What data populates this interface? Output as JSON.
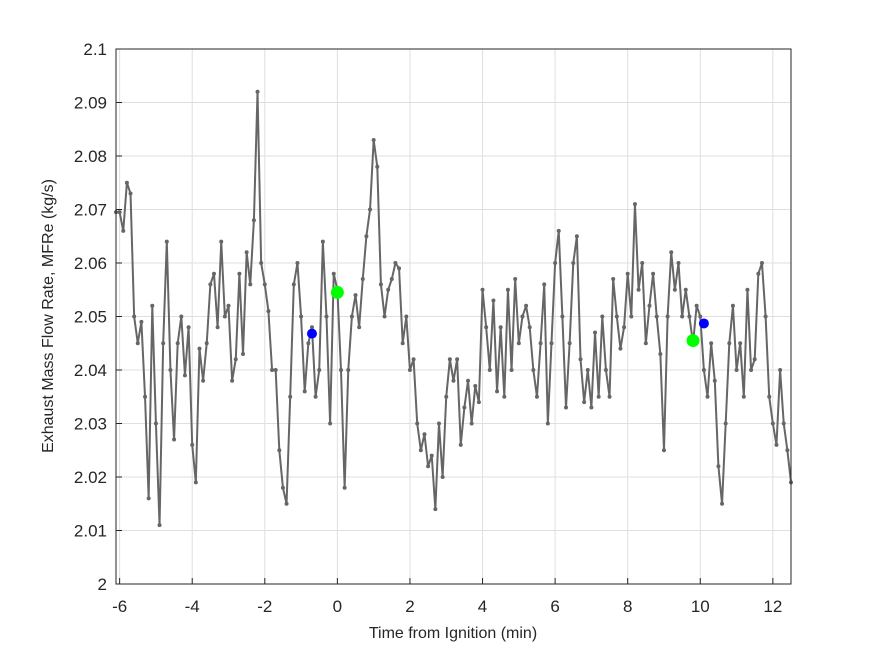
{
  "chart_data": {
    "type": "line",
    "xlabel": "Time from Ignition (min)",
    "ylabel": "Exhaust Mass Flow Rate, MFRe (kg/s)",
    "xlim": [
      -6.1,
      12.5
    ],
    "xticks": [
      -6,
      -4,
      -2,
      0,
      2,
      4,
      6,
      8,
      10,
      12
    ],
    "ylim": [
      2,
      2.1
    ],
    "yticks": [
      2,
      2.01,
      2.02,
      2.03,
      2.04,
      2.05,
      2.06,
      2.07,
      2.08,
      2.09,
      2.1
    ],
    "grid": true,
    "series": [
      {
        "color": "#666666",
        "marker": "dot",
        "x": [
          -6.1,
          -6.0,
          -5.9,
          -5.8,
          -5.7,
          -5.6,
          -5.5,
          -5.4,
          -5.3,
          -5.2,
          -5.1,
          -5.0,
          -4.9,
          -4.8,
          -4.7,
          -4.6,
          -4.5,
          -4.4,
          -4.3,
          -4.2,
          -4.1,
          -4.0,
          -3.9,
          -3.8,
          -3.7,
          -3.6,
          -3.5,
          -3.4,
          -3.3,
          -3.2,
          -3.1,
          -3.0,
          -2.9,
          -2.8,
          -2.7,
          -2.6,
          -2.5,
          -2.4,
          -2.3,
          -2.2,
          -2.1,
          -2.0,
          -1.9,
          -1.8,
          -1.7,
          -1.6,
          -1.5,
          -1.4,
          -1.3,
          -1.2,
          -1.1,
          -1.0,
          -0.9,
          -0.8,
          -0.7,
          -0.6,
          -0.5,
          -0.4,
          -0.3,
          -0.2,
          -0.1,
          0.0,
          0.1,
          0.2,
          0.3,
          0.4,
          0.5,
          0.6,
          0.7,
          0.8,
          0.9,
          1.0,
          1.1,
          1.2,
          1.3,
          1.4,
          1.5,
          1.6,
          1.7,
          1.8,
          1.9,
          2.0,
          2.1,
          2.2,
          2.3,
          2.4,
          2.5,
          2.6,
          2.7,
          2.8,
          2.9,
          3.0,
          3.1,
          3.2,
          3.3,
          3.4,
          3.5,
          3.6,
          3.7,
          3.8,
          3.9,
          4.0,
          4.1,
          4.2,
          4.3,
          4.4,
          4.5,
          4.6,
          4.7,
          4.8,
          4.9,
          5.0,
          5.1,
          5.2,
          5.3,
          5.4,
          5.5,
          5.6,
          5.7,
          5.8,
          5.9,
          6.0,
          6.1,
          6.2,
          6.3,
          6.4,
          6.5,
          6.6,
          6.7,
          6.8,
          6.9,
          7.0,
          7.1,
          7.2,
          7.3,
          7.4,
          7.5,
          7.6,
          7.7,
          7.8,
          7.9,
          8.0,
          8.1,
          8.2,
          8.3,
          8.4,
          8.5,
          8.6,
          8.7,
          8.8,
          8.9,
          9.0,
          9.1,
          9.2,
          9.3,
          9.4,
          9.5,
          9.6,
          9.7,
          9.8,
          9.9,
          10.0,
          10.1,
          10.2,
          10.3,
          10.4,
          10.5,
          10.6,
          10.7,
          10.8,
          10.9,
          11.0,
          11.1,
          11.2,
          11.3,
          11.4,
          11.5,
          11.6,
          11.7,
          11.8,
          11.9,
          12.0,
          12.1,
          12.2,
          12.3,
          12.4,
          12.5
        ],
        "values": [
          2.0695,
          2.0695,
          2.066,
          2.075,
          2.073,
          2.05,
          2.045,
          2.049,
          2.035,
          2.016,
          2.052,
          2.03,
          2.011,
          2.045,
          2.064,
          2.04,
          2.027,
          2.045,
          2.05,
          2.039,
          2.048,
          2.026,
          2.019,
          2.044,
          2.038,
          2.045,
          2.056,
          2.058,
          2.048,
          2.064,
          2.05,
          2.052,
          2.038,
          2.042,
          2.058,
          2.043,
          2.062,
          2.056,
          2.068,
          2.092,
          2.06,
          2.056,
          2.051,
          2.04,
          2.04,
          2.025,
          2.018,
          2.015,
          2.035,
          2.056,
          2.06,
          2.05,
          2.036,
          2.045,
          2.048,
          2.035,
          2.04,
          2.064,
          2.05,
          2.03,
          2.058,
          2.055,
          2.04,
          2.018,
          2.04,
          2.05,
          2.054,
          2.048,
          2.057,
          2.065,
          2.07,
          2.083,
          2.078,
          2.056,
          2.05,
          2.055,
          2.057,
          2.06,
          2.059,
          2.045,
          2.05,
          2.04,
          2.042,
          2.03,
          2.025,
          2.028,
          2.022,
          2.024,
          2.014,
          2.03,
          2.02,
          2.035,
          2.042,
          2.038,
          2.042,
          2.026,
          2.033,
          2.038,
          2.03,
          2.037,
          2.034,
          2.055,
          2.048,
          2.04,
          2.053,
          2.036,
          2.048,
          2.035,
          2.055,
          2.04,
          2.057,
          2.045,
          2.05,
          2.052,
          2.048,
          2.04,
          2.035,
          2.045,
          2.056,
          2.03,
          2.045,
          2.06,
          2.066,
          2.05,
          2.033,
          2.045,
          2.06,
          2.065,
          2.042,
          2.034,
          2.04,
          2.033,
          2.047,
          2.035,
          2.05,
          2.04,
          2.035,
          2.057,
          2.05,
          2.044,
          2.048,
          2.058,
          2.05,
          2.071,
          2.055,
          2.06,
          2.045,
          2.052,
          2.058,
          2.05,
          2.043,
          2.025,
          2.05,
          2.062,
          2.055,
          2.06,
          2.05,
          2.055,
          2.05,
          2.045,
          2.052,
          2.05,
          2.04,
          2.035,
          2.045,
          2.038,
          2.022,
          2.015,
          2.03,
          2.045,
          2.052,
          2.04,
          2.045,
          2.035,
          2.055,
          2.04,
          2.042,
          2.058,
          2.06,
          2.05,
          2.035,
          2.03,
          2.026,
          2.04,
          2.03,
          2.025,
          2.019
        ]
      },
      {
        "color": "#0000ff",
        "marker": "point",
        "x": [
          -0.7,
          10.1
        ],
        "values": [
          2.0468,
          2.0487
        ]
      },
      {
        "color": "#00ff00",
        "marker": "big",
        "x": [
          0,
          9.8
        ],
        "values": [
          2.0545,
          2.0455
        ]
      }
    ]
  }
}
